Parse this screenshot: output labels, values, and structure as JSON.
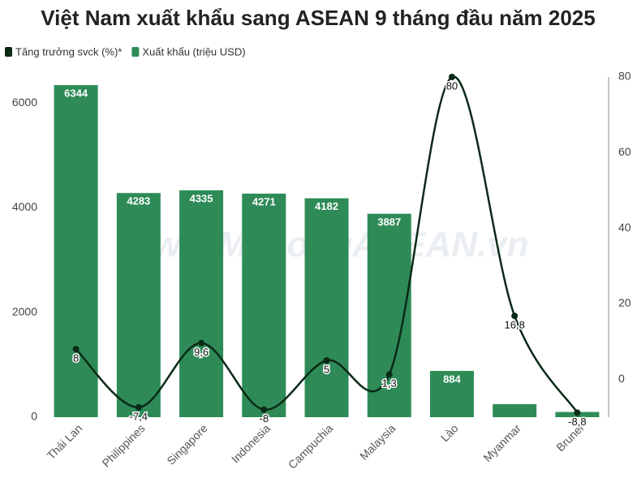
{
  "chart_data": {
    "type": "bar",
    "title": "Việt Nam xuất khẩu sang ASEAN 9 tháng đầu năm 2025",
    "watermark": "www.MekongASEAN.vn",
    "categories": [
      "Thái Lan",
      "Philippines",
      "Singapore",
      "Indonesia",
      "Campuchia",
      "Malaysia",
      "Lào",
      "Myanmar",
      "Brunei"
    ],
    "series": [
      {
        "name": "Tăng trưởng svck (%)*",
        "type": "line",
        "axis": "y2",
        "color": "#0b2a17",
        "values": [
          8,
          -7.4,
          9.6,
          -8,
          5,
          1.3,
          80,
          16.8,
          -8.8
        ],
        "value_labels": [
          "8",
          "-7,4",
          "9,6",
          "-8",
          "5",
          "1,3",
          "80",
          "16,8",
          "-8,8"
        ]
      },
      {
        "name": "Xuất khẩu (triệu USD)",
        "type": "bar",
        "color": "#2e8b57",
        "values": [
          6344,
          4283,
          4335,
          4271,
          4182,
          3887,
          884,
          250,
          100
        ],
        "value_labels": [
          "6344",
          "4283",
          "4335",
          "4271",
          "4182",
          "3887",
          "884",
          null,
          null
        ]
      }
    ],
    "ylim": [
      0,
      6500
    ],
    "yticks": [
      0,
      2000,
      4000,
      6000
    ],
    "y2lim": [
      -10,
      80
    ],
    "y2ticks": [
      0,
      20,
      40,
      60,
      80
    ],
    "grid": false
  }
}
